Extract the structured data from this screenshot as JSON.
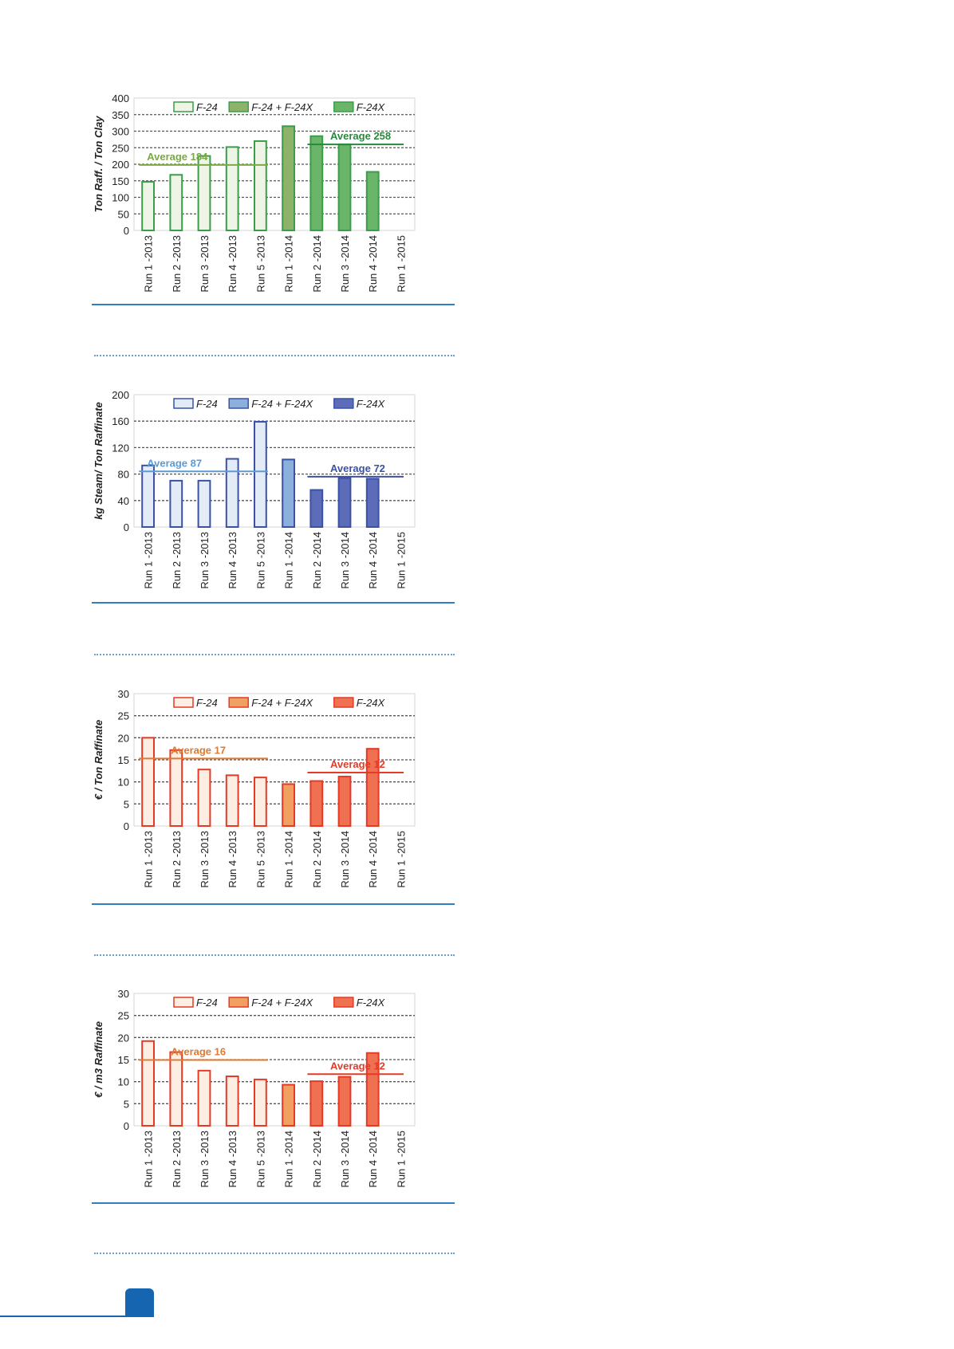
{
  "chart_data": [
    {
      "type": "bar",
      "ylabel": "Ton Raff. / Ton Clay",
      "ylim": [
        0,
        400
      ],
      "yticks": [
        0,
        50,
        100,
        150,
        200,
        250,
        300,
        350,
        400
      ],
      "categories": [
        "Run 1 -2013",
        "Run 2 -2013",
        "Run 3 -2013",
        "Run 4 -2013",
        "Run 5 -2013",
        "Run 1 -2014",
        "Run 2 -2014",
        "Run 3 -2014",
        "Run 4 -2014",
        "Run 1 -2015"
      ],
      "values": [
        147,
        168,
        225,
        252,
        270,
        315,
        285,
        260,
        177,
        null
      ],
      "groups": [
        0,
        0,
        0,
        0,
        0,
        1,
        2,
        2,
        2,
        null
      ],
      "legend": [
        "F-24",
        "F-24 + F-24X",
        "F-24X"
      ],
      "legend_position": "top",
      "colors": {
        "fills": [
          "#eef5e6",
          "#8fb26a",
          "#6bb56b"
        ],
        "stroke": "#3a9e48",
        "axis_text": "#222222"
      },
      "averages": [
        {
          "label": "Average 184",
          "value": 184,
          "line_level": 198,
          "span": [
            0,
            4
          ],
          "color": "#7aa845"
        },
        {
          "label": "Average 258",
          "value": 258,
          "line_level": 260,
          "span": [
            6,
            9
          ],
          "color": "#26893c"
        }
      ],
      "grid": true
    },
    {
      "type": "bar",
      "ylabel": "kg Steam/ Ton Raffinate",
      "ylim": [
        0,
        200
      ],
      "yticks": [
        0,
        40,
        80,
        120,
        160,
        200
      ],
      "categories": [
        "Run 1 -2013",
        "Run 2 -2013",
        "Run 3 -2013",
        "Run 4 -2013",
        "Run 5 -2013",
        "Run 1 -2014",
        "Run 2 -2014",
        "Run 3 -2014",
        "Run 4 -2014",
        "Run 1 -2015"
      ],
      "values": [
        93,
        70,
        70,
        103,
        159,
        102,
        56,
        74,
        73,
        null
      ],
      "groups": [
        0,
        0,
        0,
        0,
        0,
        1,
        2,
        2,
        2,
        null
      ],
      "legend": [
        "F-24",
        "F-24 + F-24X",
        "F-24X"
      ],
      "legend_position": "top",
      "colors": {
        "fills": [
          "#e3ebf7",
          "#8bb0dc",
          "#5d6cb8"
        ],
        "stroke": "#3a52a6",
        "axis_text": "#222222"
      },
      "averages": [
        {
          "label": "Average 87",
          "value": 87,
          "line_level": 84,
          "span": [
            0,
            4
          ],
          "color": "#5b9bd5"
        },
        {
          "label": "Average 72",
          "value": 72,
          "line_level": 76,
          "span": [
            6,
            9
          ],
          "color": "#3a52a6"
        }
      ],
      "grid": true
    },
    {
      "type": "bar",
      "ylabel": "€ / Ton Raffinate",
      "ylim": [
        0,
        30
      ],
      "yticks": [
        0,
        5,
        10,
        15,
        20,
        25,
        30
      ],
      "categories": [
        "Run 1 -2013",
        "Run 2 -2013",
        "Run 3 -2013",
        "Run 4 -2013",
        "Run 5 -2013",
        "Run 1 -2014",
        "Run 2 -2014",
        "Run 3 -2014",
        "Run 4 -2014",
        "Run 1 -2015"
      ],
      "values": [
        20,
        17.2,
        12.8,
        11.5,
        11,
        9.5,
        10.2,
        11.2,
        17.5,
        null
      ],
      "groups": [
        0,
        0,
        0,
        0,
        0,
        1,
        2,
        2,
        2,
        null
      ],
      "legend": [
        "F-24",
        "F-24 + F-24X",
        "F-24X"
      ],
      "legend_position": "top",
      "colors": {
        "fills": [
          "#fdeee4",
          "#f0a060",
          "#f07052"
        ],
        "stroke": "#e43a26",
        "axis_text": "#222222"
      },
      "averages": [
        {
          "label": "Average 17",
          "value": 17,
          "line_level": 15.3,
          "span": [
            0,
            4
          ],
          "color": "#e07a30"
        },
        {
          "label": "Average  12",
          "value": 12,
          "line_level": 12.1,
          "span": [
            6,
            9
          ],
          "color": "#e43a26"
        }
      ],
      "grid": true
    },
    {
      "type": "bar",
      "ylabel": "€ / m3 Raffinate",
      "ylim": [
        0,
        30
      ],
      "yticks": [
        0,
        5,
        10,
        15,
        20,
        25,
        30
      ],
      "categories": [
        "Run 1 -2013",
        "Run 2 -2013",
        "Run 3 -2013",
        "Run 4 -2013",
        "Run 5 -2013",
        "Run 1 -2014",
        "Run 2 -2014",
        "Run 3 -2014",
        "Run 4 -2014",
        "Run 1 -2015"
      ],
      "values": [
        19.2,
        16.7,
        12.5,
        11.2,
        10.5,
        9.3,
        10.1,
        11.1,
        16.5,
        null
      ],
      "groups": [
        0,
        0,
        0,
        0,
        0,
        1,
        2,
        2,
        2,
        null
      ],
      "legend": [
        "F-24",
        "F-24 + F-24X",
        "F-24X"
      ],
      "legend_position": "top",
      "colors": {
        "fills": [
          "#fdeee4",
          "#f0a060",
          "#f07052"
        ],
        "stroke": "#e43a26",
        "axis_text": "#222222"
      },
      "averages": [
        {
          "label": "Average 16",
          "value": 16,
          "line_level": 14.9,
          "span": [
            0,
            4
          ],
          "color": "#e07a30"
        },
        {
          "label": "Average 12",
          "value": 12,
          "line_level": 11.7,
          "span": [
            6,
            9
          ],
          "color": "#e43a26"
        }
      ],
      "grid": true
    }
  ]
}
